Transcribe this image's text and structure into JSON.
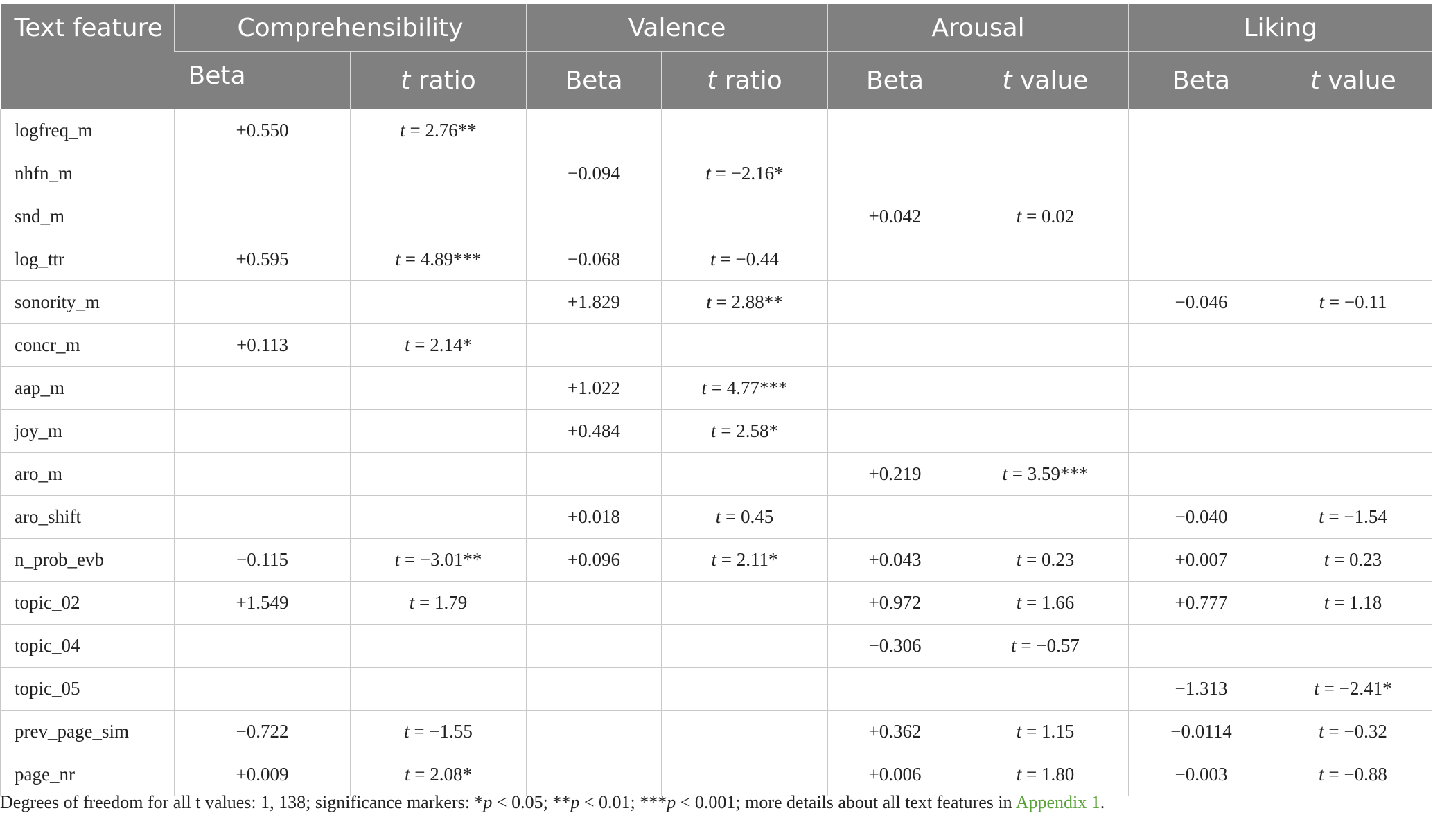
{
  "header": {
    "text_feature": "Text feature",
    "groups": [
      "Comprehensibility",
      "Valence",
      "Arousal",
      "Liking"
    ],
    "sub": [
      {
        "pre": "",
        "it": "",
        "post": "Beta"
      },
      {
        "pre": "",
        "it": "t",
        "post": " ratio"
      },
      {
        "pre": "",
        "it": "",
        "post": "Beta"
      },
      {
        "pre": "",
        "it": "t",
        "post": " ratio"
      },
      {
        "pre": "",
        "it": "",
        "post": "Beta"
      },
      {
        "pre": "",
        "it": "t",
        "post": " value"
      },
      {
        "pre": "",
        "it": "",
        "post": "Beta"
      },
      {
        "pre": "",
        "it": "t",
        "post": " value"
      }
    ]
  },
  "rows": [
    {
      "feature": "logfreq_m",
      "cells": [
        "+0.550",
        "t = 2.76**",
        "",
        "",
        "",
        "",
        "",
        ""
      ]
    },
    {
      "feature": "nhfn_m",
      "cells": [
        "",
        "",
        "−0.094",
        "t = −2.16*",
        "",
        "",
        "",
        ""
      ]
    },
    {
      "feature": "snd_m",
      "cells": [
        "",
        "",
        "",
        "",
        "+0.042",
        "t = 0.02",
        "",
        ""
      ]
    },
    {
      "feature": "log_ttr",
      "cells": [
        "+0.595",
        "t = 4.89***",
        "−0.068",
        "t = −0.44",
        "",
        "",
        "",
        ""
      ]
    },
    {
      "feature": "sonority_m",
      "cells": [
        "",
        "",
        "+1.829",
        "t = 2.88**",
        "",
        "",
        "−0.046",
        "t = −0.11"
      ]
    },
    {
      "feature": "concr_m",
      "cells": [
        "+0.113",
        "t = 2.14*",
        "",
        "",
        "",
        "",
        "",
        ""
      ]
    },
    {
      "feature": "aap_m",
      "cells": [
        "",
        "",
        "+1.022",
        "t = 4.77***",
        "",
        "",
        "",
        ""
      ]
    },
    {
      "feature": "joy_m",
      "cells": [
        "",
        "",
        "+0.484",
        "t = 2.58*",
        "",
        "",
        "",
        ""
      ]
    },
    {
      "feature": "aro_m",
      "cells": [
        "",
        "",
        "",
        "",
        "+0.219",
        "t = 3.59***",
        "",
        ""
      ]
    },
    {
      "feature": "aro_shift",
      "cells": [
        "",
        "",
        "+0.018",
        "t = 0.45",
        "",
        "",
        "−0.040",
        "t = −1.54"
      ]
    },
    {
      "feature": "n_prob_evb",
      "cells": [
        "−0.115",
        "t = −3.01**",
        "+0.096",
        "t = 2.11*",
        "+0.043",
        "t = 0.23",
        "+0.007",
        "t = 0.23"
      ]
    },
    {
      "feature": "topic_02",
      "cells": [
        "+1.549",
        "t = 1.79",
        "",
        "",
        "+0.972",
        "t = 1.66",
        "+0.777",
        "t = 1.18"
      ]
    },
    {
      "feature": "topic_04",
      "cells": [
        "",
        "",
        "",
        "",
        "−0.306",
        "t = −0.57",
        "",
        ""
      ]
    },
    {
      "feature": "topic_05",
      "cells": [
        "",
        "",
        "",
        "",
        "",
        "",
        "−1.313",
        "t = −2.41*"
      ]
    },
    {
      "feature": "prev_page_sim",
      "cells": [
        "−0.722",
        "t = −1.55",
        "",
        "",
        "+0.362",
        "t = 1.15",
        "−0.0114",
        "t = −0.32"
      ]
    },
    {
      "feature": "page_nr",
      "cells": [
        "+0.009",
        "t = 2.08*",
        "",
        "",
        "+0.006",
        "t = 1.80",
        "−0.003",
        "t = −0.88"
      ]
    }
  ],
  "footnote": {
    "a": "Degrees of freedom for all t values: 1, 138; significance markers: *",
    "p1": "p",
    "b": " < 0.05; **",
    "p2": "p",
    "c": " < 0.01; ***",
    "p3": "p",
    "d": " < 0.001; more details about all text features in ",
    "link": "Appendix 1",
    "e": "."
  }
}
